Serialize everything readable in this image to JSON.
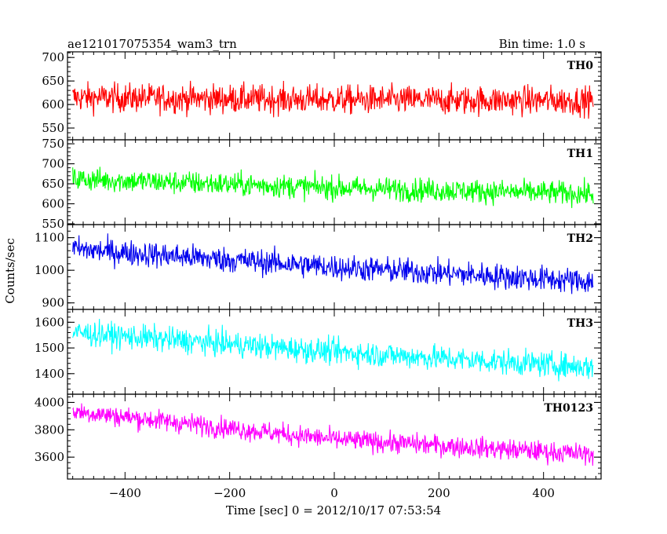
{
  "header": {
    "title": "ae121017075354_wam3_trn",
    "bin_time": "Bin time: 1.0 s"
  },
  "chart_data": {
    "type": "line",
    "xlabel": "Time [sec] 0 = 2012/10/17 07:53:54",
    "ylabel": "Counts/sec",
    "xlim": [
      -510,
      510
    ],
    "x_ticks": [
      -400,
      -200,
      0,
      200,
      400
    ],
    "x_tick_labels": [
      "−400",
      "−200",
      "0",
      "200",
      "400"
    ],
    "x_range": [
      -500,
      495
    ],
    "panels": [
      {
        "name": "TH0",
        "color": "#ff0000",
        "ylim": [
          525,
          712
        ],
        "y_ticks": [
          550,
          600,
          650,
          700
        ],
        "y_tick_labels": [
          "550",
          "600",
          "650",
          "700"
        ],
        "trend": [
          [
            -500,
            615
          ],
          [
            0,
            610
          ],
          [
            495,
            608
          ]
        ],
        "noise": 25
      },
      {
        "name": "TH1",
        "color": "#00ff00",
        "ylim": [
          548,
          760
        ],
        "y_ticks": [
          550,
          600,
          650,
          700,
          750
        ],
        "y_tick_labels": [
          "550",
          "600",
          "650",
          "700",
          "750"
        ],
        "trend": [
          [
            -500,
            662
          ],
          [
            0,
            640
          ],
          [
            495,
            625
          ]
        ],
        "noise": 24
      },
      {
        "name": "TH2",
        "color": "#0000ee",
        "ylim": [
          880,
          1140
        ],
        "y_ticks": [
          900,
          1000,
          1100
        ],
        "y_tick_labels": [
          "900",
          "1000",
          "1100"
        ],
        "trend": [
          [
            -500,
            1065
          ],
          [
            0,
            1010
          ],
          [
            495,
            965
          ]
        ],
        "noise": 32
      },
      {
        "name": "TH3",
        "color": "#00ffff",
        "ylim": [
          1320,
          1650
        ],
        "y_ticks": [
          1400,
          1500,
          1600
        ],
        "y_tick_labels": [
          "1400",
          "1500",
          "1600"
        ],
        "trend": [
          [
            -500,
            1560
          ],
          [
            0,
            1485
          ],
          [
            495,
            1425
          ]
        ],
        "noise": 40
      },
      {
        "name": "TH0123",
        "color": "#ff00ff",
        "ylim": [
          3440,
          4060
        ],
        "y_ticks": [
          3600,
          3800,
          4000
        ],
        "y_tick_labels": [
          "3600",
          "3800",
          "4000"
        ],
        "trend": [
          [
            -500,
            3935
          ],
          [
            0,
            3730
          ],
          [
            495,
            3620
          ]
        ],
        "noise": 62
      }
    ]
  }
}
